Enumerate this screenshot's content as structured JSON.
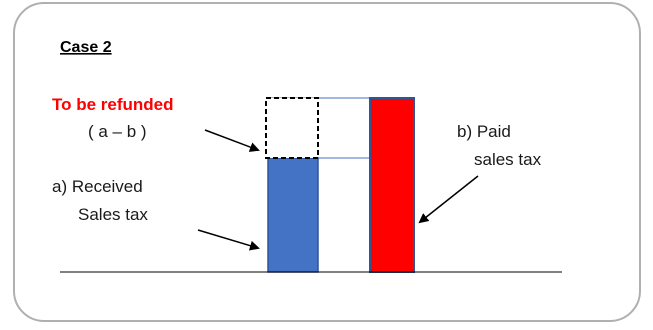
{
  "diagram": {
    "title": "Case 2",
    "refund_label": "To be refunded",
    "refund_formula": "( a – b )",
    "received_line1": "a) Received",
    "received_line2": "Sales tax",
    "paid_line1": "b) Paid",
    "paid_line2": "sales tax"
  },
  "colors": {
    "frame_border": "#b0b0b0",
    "received_bar": "#4472c4",
    "received_bar_border": "#2f5597",
    "paid_bar": "#ff0000",
    "paid_bar_border": "#2f5597",
    "refund_text": "#ff0000",
    "guide_lines": "#4472c4",
    "baseline": "#000000"
  }
}
